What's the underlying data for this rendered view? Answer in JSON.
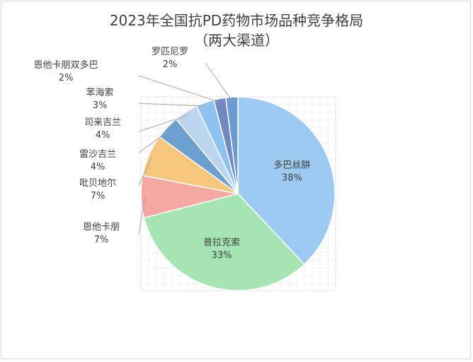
{
  "chart_data": {
    "type": "pie",
    "title": "2023年全国抗PD药物市场品种竞争格局",
    "subtitle": "（两大渠道）",
    "start_angle_deg": 0,
    "direction": "clockwise",
    "slices": [
      {
        "name": "多巴丝肼",
        "value": 38,
        "label": "38%",
        "color": "#9ccaf2"
      },
      {
        "name": "普拉克索",
        "value": 33,
        "label": "33%",
        "color": "#a5e5b3"
      },
      {
        "name": "恩他卡朋",
        "value": 7,
        "label": "7%",
        "color": "#f5a8a2"
      },
      {
        "name": "吡贝地尔",
        "value": 7,
        "label": "7%",
        "color": "#f7c77e"
      },
      {
        "name": "雷沙吉兰",
        "value": 4,
        "label": "4%",
        "color": "#6d9fcf"
      },
      {
        "name": "司来吉兰",
        "value": 4,
        "label": "4%",
        "color": "#bcd5ee"
      },
      {
        "name": "苯海索",
        "value": 3,
        "label": "3%",
        "color": "#8ec2f0"
      },
      {
        "name": "恩他卡朋双多巴",
        "value": 2,
        "label": "2%",
        "color": "#7188c0"
      },
      {
        "name": "罗匹尼罗",
        "value": 2,
        "label": "2%",
        "color": "#6b9bd0"
      }
    ],
    "grid": true,
    "legend": "none"
  }
}
